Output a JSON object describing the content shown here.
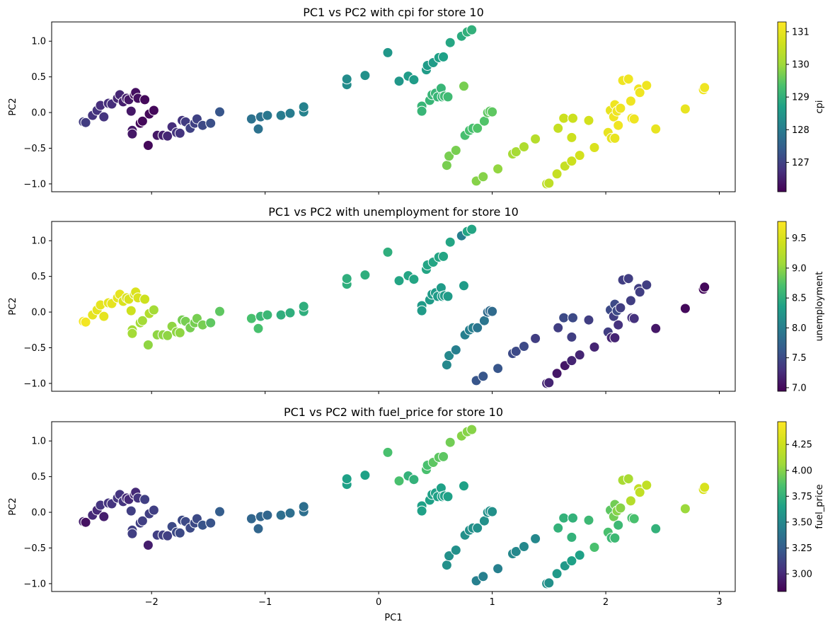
{
  "chart_data": {
    "type": "scatter",
    "x_label": "PC1",
    "y_label": "PC2",
    "x_range": [
      -2.88,
      3.14
    ],
    "y_range": [
      -1.11,
      1.27
    ],
    "x_ticks": [
      -2,
      -1,
      0,
      1,
      2,
      3
    ],
    "y_ticks": [
      -1.0,
      -0.5,
      0.0,
      0.5,
      1.0
    ],
    "grid": false,
    "colormap": "viridis",
    "points": [
      [
        -2.6,
        -0.13
      ],
      [
        -2.58,
        -0.14
      ],
      [
        -2.52,
        -0.04
      ],
      [
        -2.48,
        0.03
      ],
      [
        -2.45,
        0.1
      ],
      [
        -2.42,
        -0.06
      ],
      [
        -2.38,
        0.13
      ],
      [
        -2.35,
        0.12
      ],
      [
        -2.3,
        0.2
      ],
      [
        -2.28,
        0.25
      ],
      [
        -2.25,
        0.15
      ],
      [
        -2.22,
        0.2
      ],
      [
        -2.2,
        0.18
      ],
      [
        -2.18,
        0.02
      ],
      [
        -2.17,
        -0.25
      ],
      [
        -2.17,
        -0.3
      ],
      [
        -2.15,
        0.25
      ],
      [
        -2.14,
        0.28
      ],
      [
        -2.12,
        0.2
      ],
      [
        -2.1,
        -0.15
      ],
      [
        -2.08,
        -0.12
      ],
      [
        -2.06,
        0.18
      ],
      [
        -2.03,
        -0.46
      ],
      [
        -2.02,
        -0.02
      ],
      [
        -1.98,
        0.03
      ],
      [
        -1.95,
        -0.32
      ],
      [
        -1.9,
        -0.32
      ],
      [
        -1.86,
        -0.33
      ],
      [
        -1.82,
        -0.2
      ],
      [
        -1.78,
        -0.28
      ],
      [
        -1.75,
        -0.29
      ],
      [
        -1.73,
        -0.11
      ],
      [
        -1.7,
        -0.13
      ],
      [
        -1.66,
        -0.22
      ],
      [
        -1.62,
        -0.15
      ],
      [
        -1.6,
        -0.09
      ],
      [
        -1.55,
        -0.18
      ],
      [
        -1.48,
        -0.15
      ],
      [
        -1.4,
        0.01
      ],
      [
        -1.12,
        -0.09
      ],
      [
        -1.06,
        -0.23
      ],
      [
        -1.04,
        -0.06
      ],
      [
        -0.98,
        -0.04
      ],
      [
        -0.86,
        -0.04
      ],
      [
        -0.78,
        -0.01
      ],
      [
        -0.66,
        0.01
      ],
      [
        -0.66,
        0.08
      ],
      [
        -0.28,
        0.39
      ],
      [
        -0.28,
        0.47
      ],
      [
        -0.12,
        0.52
      ],
      [
        0.08,
        0.84
      ],
      [
        0.18,
        0.44
      ],
      [
        0.26,
        0.51
      ],
      [
        0.31,
        0.46
      ],
      [
        0.38,
        0.09
      ],
      [
        0.38,
        0.02
      ],
      [
        0.42,
        0.6
      ],
      [
        0.43,
        0.66
      ],
      [
        0.45,
        0.17
      ],
      [
        0.47,
        0.25
      ],
      [
        0.48,
        0.7
      ],
      [
        0.5,
        0.27
      ],
      [
        0.52,
        0.22
      ],
      [
        0.53,
        0.77
      ],
      [
        0.55,
        0.34
      ],
      [
        0.56,
        0.22
      ],
      [
        0.57,
        0.78
      ],
      [
        0.58,
        0.23
      ],
      [
        0.6,
        -0.74
      ],
      [
        0.61,
        0.22
      ],
      [
        0.62,
        -0.61
      ],
      [
        0.63,
        0.98
      ],
      [
        0.68,
        -0.53
      ],
      [
        0.73,
        1.07
      ],
      [
        0.75,
        0.37
      ],
      [
        0.76,
        -0.32
      ],
      [
        0.78,
        1.13
      ],
      [
        0.8,
        -0.25
      ],
      [
        0.82,
        1.16
      ],
      [
        0.83,
        -0.22
      ],
      [
        0.86,
        -0.96
      ],
      [
        0.87,
        -0.22
      ],
      [
        0.92,
        -0.9
      ],
      [
        0.93,
        -0.12
      ],
      [
        0.96,
        0.0
      ],
      [
        0.98,
        0.02
      ],
      [
        1.0,
        0.01
      ],
      [
        1.05,
        -0.79
      ],
      [
        1.18,
        -0.58
      ],
      [
        1.21,
        -0.55
      ],
      [
        1.28,
        -0.48
      ],
      [
        1.38,
        -0.37
      ],
      [
        1.48,
        -1.0
      ],
      [
        1.5,
        -0.99
      ],
      [
        1.57,
        -0.86
      ],
      [
        1.58,
        -0.22
      ],
      [
        1.63,
        -0.08
      ],
      [
        1.64,
        -0.75
      ],
      [
        1.7,
        -0.68
      ],
      [
        1.7,
        -0.35
      ],
      [
        1.71,
        -0.08
      ],
      [
        1.77,
        -0.6
      ],
      [
        1.85,
        -0.11
      ],
      [
        1.9,
        -0.49
      ],
      [
        2.02,
        -0.28
      ],
      [
        2.04,
        0.03
      ],
      [
        2.05,
        -0.36
      ],
      [
        2.07,
        -0.06
      ],
      [
        2.08,
        0.11
      ],
      [
        2.08,
        -0.36
      ],
      [
        2.1,
        0.02
      ],
      [
        2.11,
        -0.18
      ],
      [
        2.13,
        0.06
      ],
      [
        2.15,
        0.45
      ],
      [
        2.2,
        0.47
      ],
      [
        2.22,
        0.16
      ],
      [
        2.23,
        -0.08
      ],
      [
        2.25,
        -0.09
      ],
      [
        2.29,
        0.33
      ],
      [
        2.3,
        0.28
      ],
      [
        2.36,
        0.38
      ],
      [
        2.44,
        -0.23
      ],
      [
        2.7,
        0.05
      ],
      [
        2.86,
        0.32
      ],
      [
        2.87,
        0.35
      ]
    ],
    "panels": [
      {
        "title": "PC1 vs PC2 with cpi for store 10",
        "colorbar_label": "cpi",
        "colorbar_range": [
          126.1,
          131.3
        ],
        "colorbar_ticks": [
          127,
          128,
          129,
          130,
          131
        ],
        "color_values": [
          126.9,
          126.9,
          126.8,
          126.8,
          126.7,
          126.8,
          126.7,
          126.7,
          126.6,
          126.6,
          126.5,
          126.5,
          126.4,
          126.4,
          126.4,
          126.4,
          126.3,
          126.3,
          126.3,
          126.2,
          126.2,
          126.2,
          126.2,
          126.2,
          126.2,
          126.4,
          126.5,
          126.6,
          126.7,
          126.8,
          126.8,
          126.8,
          126.9,
          127.0,
          127.0,
          127.0,
          127.1,
          127.2,
          127.3,
          127.8,
          127.8,
          127.8,
          127.9,
          128.0,
          128.0,
          128.1,
          128.1,
          128.3,
          128.3,
          128.4,
          128.5,
          128.5,
          128.6,
          128.6,
          129.1,
          129.1,
          128.6,
          128.6,
          129.1,
          129.1,
          128.6,
          129.1,
          129.1,
          128.7,
          129.1,
          129.1,
          128.7,
          129.2,
          129.7,
          129.2,
          129.7,
          128.8,
          129.7,
          128.9,
          129.7,
          129.3,
          129.0,
          129.3,
          129.0,
          129.3,
          129.8,
          129.4,
          129.8,
          129.4,
          129.5,
          129.5,
          129.5,
          129.9,
          130.1,
          130.1,
          130.2,
          130.3,
          130.4,
          130.4,
          130.5,
          130.5,
          130.6,
          130.5,
          130.6,
          130.6,
          130.6,
          130.7,
          130.7,
          130.8,
          131.0,
          131.0,
          131.0,
          131.1,
          131.1,
          131.0,
          131.1,
          131.1,
          131.1,
          131.1,
          131.1,
          131.1,
          131.1,
          131.1,
          131.1,
          131.1,
          131.1,
          131.0,
          131.0,
          131.1,
          131.1
        ]
      },
      {
        "title": "PC1 vs PC2 with unemployment for store 10",
        "colorbar_label": "unemployment",
        "colorbar_range": [
          6.94,
          9.78
        ],
        "colorbar_ticks": [
          7.0,
          7.5,
          8.0,
          8.5,
          9.0,
          9.5
        ],
        "color_values": [
          9.7,
          9.7,
          9.6,
          9.6,
          9.6,
          9.6,
          9.6,
          9.6,
          9.6,
          9.6,
          9.5,
          9.5,
          9.5,
          9.4,
          9.1,
          9.1,
          9.5,
          9.5,
          9.5,
          9.1,
          9.1,
          9.4,
          9.0,
          9.2,
          9.1,
          9.0,
          9.0,
          9.0,
          9.0,
          9.0,
          9.0,
          8.9,
          8.9,
          8.9,
          8.9,
          8.9,
          8.9,
          8.8,
          8.8,
          8.7,
          8.7,
          8.6,
          8.6,
          8.5,
          8.5,
          8.5,
          8.5,
          8.5,
          8.5,
          8.5,
          8.5,
          8.4,
          8.4,
          8.4,
          8.3,
          8.3,
          8.4,
          8.4,
          8.3,
          8.3,
          8.4,
          8.3,
          8.3,
          8.4,
          8.3,
          8.3,
          8.4,
          8.3,
          8.1,
          8.3,
          8.1,
          8.4,
          8.0,
          8.0,
          8.3,
          8.0,
          8.4,
          8.0,
          8.4,
          8.0,
          7.6,
          7.9,
          7.6,
          7.9,
          7.8,
          7.8,
          7.8,
          7.6,
          7.5,
          7.5,
          7.5,
          7.4,
          7.2,
          7.2,
          7.1,
          7.4,
          7.5,
          7.1,
          7.2,
          7.4,
          7.5,
          7.2,
          7.4,
          7.2,
          7.4,
          7.5,
          7.2,
          7.4,
          7.5,
          7.2,
          7.5,
          7.3,
          7.4,
          7.4,
          7.4,
          7.4,
          7.3,
          7.3,
          7.4,
          7.4,
          7.4,
          7.1,
          7.0,
          7.0,
          7.0
        ]
      },
      {
        "title": "PC1 vs PC2 with fuel_price for store 10",
        "colorbar_label": "fuel_price",
        "colorbar_range": [
          2.83,
          4.47
        ],
        "colorbar_ticks": [
          3.0,
          3.25,
          3.5,
          3.75,
          4.0,
          4.25
        ],
        "color_values": [
          2.95,
          2.9,
          3.0,
          3.0,
          3.05,
          2.95,
          3.05,
          3.05,
          3.05,
          3.05,
          3.05,
          3.0,
          3.0,
          3.1,
          3.1,
          3.1,
          3.0,
          3.0,
          3.05,
          3.1,
          3.1,
          3.1,
          2.95,
          3.1,
          3.1,
          3.1,
          3.1,
          3.1,
          3.15,
          3.15,
          3.15,
          3.15,
          3.15,
          3.15,
          3.15,
          3.15,
          3.2,
          3.2,
          3.25,
          3.3,
          3.3,
          3.3,
          3.3,
          3.35,
          3.35,
          3.35,
          3.35,
          3.65,
          3.65,
          3.65,
          3.85,
          3.85,
          3.75,
          3.75,
          3.65,
          3.65,
          3.85,
          3.85,
          3.65,
          3.65,
          3.9,
          3.65,
          3.65,
          3.9,
          3.65,
          3.65,
          3.9,
          3.65,
          3.55,
          3.65,
          3.55,
          3.95,
          3.55,
          4.0,
          3.65,
          3.55,
          4.0,
          3.55,
          4.0,
          3.55,
          3.45,
          3.55,
          3.45,
          3.55,
          3.55,
          3.55,
          3.55,
          3.45,
          3.5,
          3.5,
          3.5,
          3.5,
          3.55,
          3.55,
          3.6,
          3.75,
          3.75,
          3.6,
          3.65,
          3.75,
          3.75,
          3.65,
          3.8,
          3.85,
          3.85,
          3.9,
          3.8,
          3.95,
          3.95,
          3.8,
          4.0,
          3.8,
          4.0,
          4.1,
          4.1,
          4.15,
          3.85,
          3.85,
          4.2,
          4.2,
          4.2,
          3.75,
          4.05,
          4.3,
          4.3
        ]
      }
    ]
  }
}
